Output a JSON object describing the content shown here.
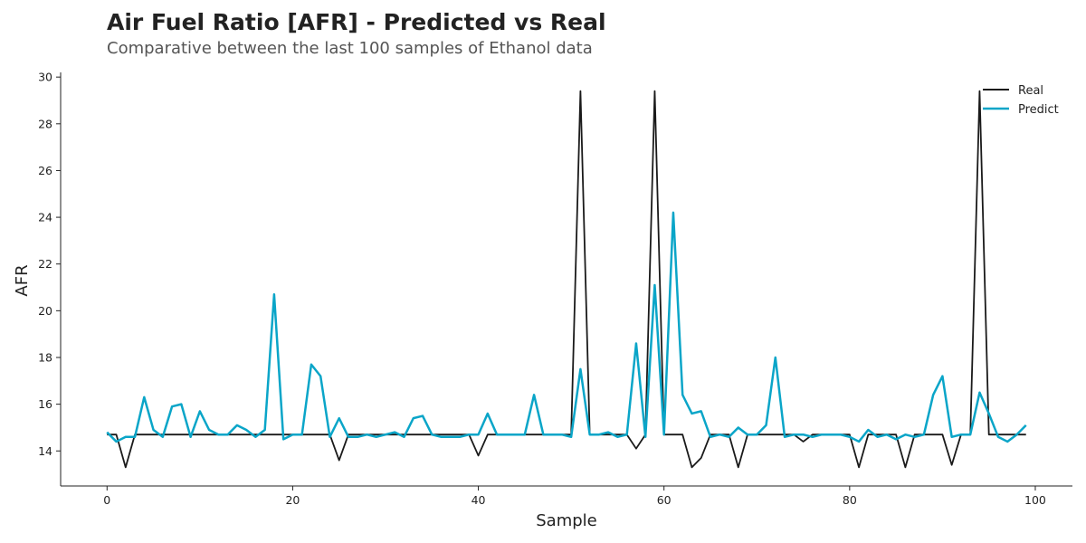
{
  "header": {
    "title": "Air Fuel Ratio [AFR] - Predicted vs Real",
    "subtitle": "Comparative between the last 100 samples of Ethanol data"
  },
  "chart_data": {
    "type": "line",
    "title": "Air Fuel Ratio [AFR] - Predicted vs Real",
    "subtitle": "Comparative between the last 100 samples of Ethanol data",
    "xlabel": "Sample",
    "ylabel": "AFR",
    "xlim": [
      -5,
      104
    ],
    "ylim": [
      12.5,
      30.2
    ],
    "xticks": [
      0,
      20,
      40,
      60,
      80,
      100
    ],
    "yticks": [
      14,
      16,
      18,
      20,
      22,
      24,
      26,
      28,
      30
    ],
    "grid": false,
    "legend": "top-right",
    "colors": {
      "real": "#1a1a1a",
      "predict": "#0aa5c8"
    },
    "series": [
      {
        "name": "Real",
        "values": [
          14.7,
          14.7,
          13.3,
          14.7,
          14.7,
          14.7,
          14.7,
          14.7,
          14.7,
          14.7,
          14.7,
          14.7,
          14.7,
          14.7,
          14.7,
          14.7,
          14.7,
          14.7,
          14.7,
          14.7,
          14.7,
          14.7,
          14.7,
          14.7,
          14.7,
          13.6,
          14.7,
          14.7,
          14.7,
          14.7,
          14.7,
          14.7,
          14.7,
          14.7,
          14.7,
          14.7,
          14.7,
          14.7,
          14.7,
          14.7,
          13.8,
          14.7,
          14.7,
          14.7,
          14.7,
          14.7,
          14.7,
          14.7,
          14.7,
          14.7,
          14.7,
          29.4,
          14.7,
          14.7,
          14.7,
          14.7,
          14.7,
          14.1,
          14.7,
          29.4,
          14.7,
          14.7,
          14.7,
          13.3,
          13.7,
          14.7,
          14.7,
          14.7,
          13.3,
          14.7,
          14.7,
          14.7,
          14.7,
          14.7,
          14.7,
          14.4,
          14.7,
          14.7,
          14.7,
          14.7,
          14.7,
          13.3,
          14.7,
          14.7,
          14.7,
          14.7,
          13.3,
          14.7,
          14.7,
          14.7,
          14.7,
          13.4,
          14.7,
          14.7,
          29.4,
          14.7,
          14.7,
          14.7,
          14.7,
          14.7
        ]
      },
      {
        "name": "Predict",
        "values": [
          14.8,
          14.4,
          14.6,
          14.6,
          16.3,
          14.9,
          14.6,
          15.9,
          16.0,
          14.6,
          15.7,
          14.9,
          14.7,
          14.7,
          15.1,
          14.9,
          14.6,
          14.9,
          20.7,
          14.5,
          14.7,
          14.7,
          17.7,
          17.2,
          14.6,
          15.4,
          14.6,
          14.6,
          14.7,
          14.6,
          14.7,
          14.8,
          14.6,
          15.4,
          15.5,
          14.7,
          14.6,
          14.6,
          14.6,
          14.7,
          14.7,
          15.6,
          14.7,
          14.7,
          14.7,
          14.7,
          16.4,
          14.7,
          14.7,
          14.7,
          14.6,
          17.5,
          14.7,
          14.7,
          14.8,
          14.6,
          14.7,
          18.6,
          14.6,
          21.1,
          14.7,
          24.2,
          16.4,
          15.6,
          15.7,
          14.6,
          14.7,
          14.6,
          15.0,
          14.7,
          14.7,
          15.1,
          18.0,
          14.6,
          14.7,
          14.7,
          14.6,
          14.7,
          14.7,
          14.7,
          14.6,
          14.4,
          14.9,
          14.6,
          14.7,
          14.5,
          14.7,
          14.6,
          14.7,
          16.4,
          17.2,
          14.6,
          14.7,
          14.7,
          16.5,
          15.6,
          14.6,
          14.4,
          14.7,
          15.1
        ]
      }
    ]
  }
}
